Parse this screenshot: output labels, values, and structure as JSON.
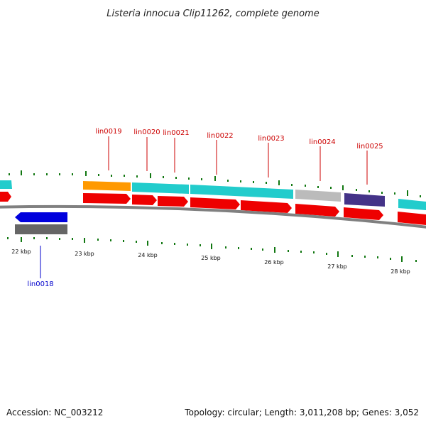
{
  "title": "Listeria innocua Clip11262, complete genome",
  "footer": {
    "accession": "Accession: NC_003212",
    "summary": "Topology: circular; Length: 3,011,208 bp; Genes: 3,052"
  },
  "colors": {
    "background": "#ffffff",
    "backbone": "#808080",
    "gene_red": "#ee0000",
    "gene_blue": "#0000dd",
    "feature_orange": "#ff9900",
    "feature_cyan": "#22cccc",
    "feature_gray": "#bbbbbb",
    "feature_darkgray": "#666666",
    "feature_purple": "#443388",
    "tick_green": "#117711",
    "label_red": "#cc0000",
    "label_blue": "#0000cc"
  },
  "scale_ticks": [
    "22 kbp",
    "23 kbp",
    "24 kbp",
    "25 kbp",
    "26 kbp",
    "27 kbp",
    "28 kbp"
  ],
  "gene_labels": [
    {
      "text": "lin0018",
      "strand": "reverse"
    },
    {
      "text": "lin0019",
      "strand": "forward"
    },
    {
      "text": "lin0020",
      "strand": "forward"
    },
    {
      "text": "lin0021",
      "strand": "forward"
    },
    {
      "text": "lin0022",
      "strand": "forward"
    },
    {
      "text": "lin0023",
      "strand": "forward"
    },
    {
      "text": "lin0024",
      "strand": "forward"
    },
    {
      "text": "lin0025",
      "strand": "forward"
    }
  ]
}
